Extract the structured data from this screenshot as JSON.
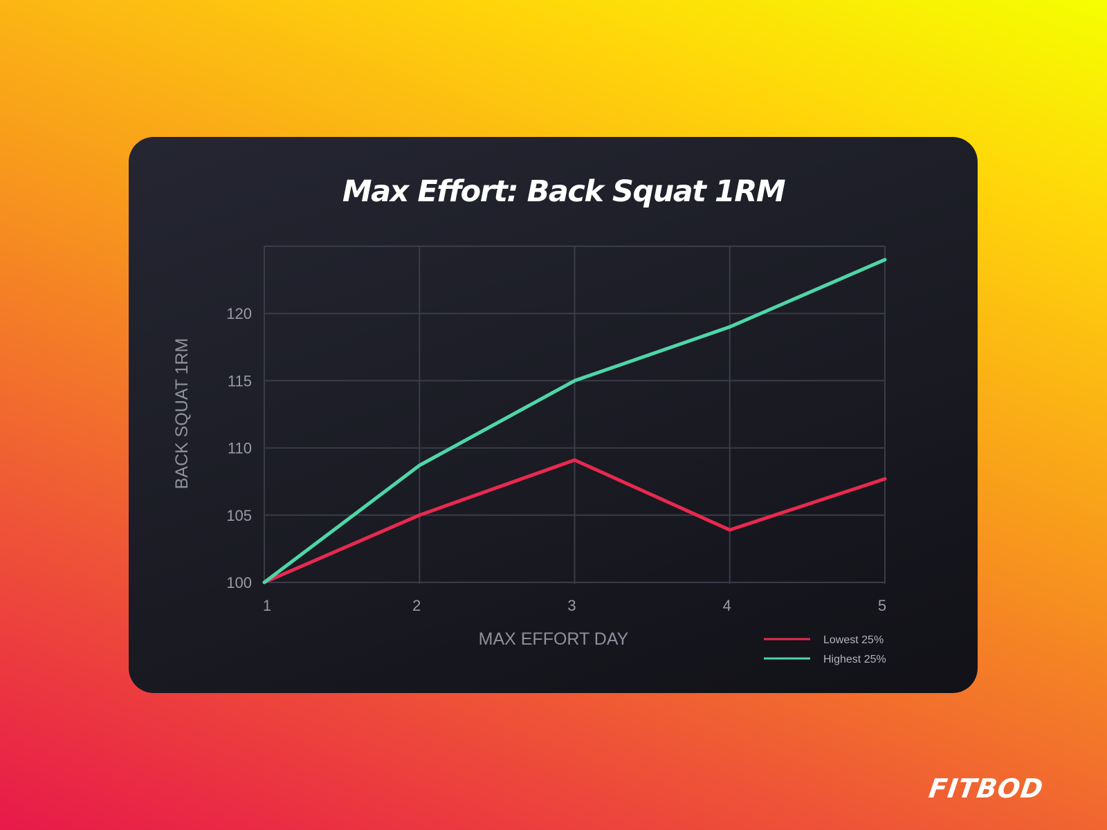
{
  "chart_data": {
    "type": "line",
    "title": "Max Effort: Back Squat 1RM",
    "xlabel": "MAX EFFORT DAY",
    "ylabel": "BACK SQUAT 1RM",
    "x": [
      1,
      2,
      3,
      4,
      5
    ],
    "xticks": [
      "1",
      "2",
      "3",
      "4",
      "5"
    ],
    "yticks": [
      "100",
      "105",
      "110",
      "115",
      "120"
    ],
    "ylim": [
      100,
      125
    ],
    "xlim": [
      1,
      5
    ],
    "grid": true,
    "legend_position": "bottom-right",
    "series": [
      {
        "name": "Lowest 25%",
        "color": "#e8294f",
        "values": [
          100,
          105,
          109.1,
          103.9,
          107.7
        ]
      },
      {
        "name": "Highest 25%",
        "color": "#4fd6a8",
        "values": [
          100,
          108.7,
          115,
          119,
          124
        ]
      }
    ]
  },
  "brand": {
    "logo_text": "FITBOD"
  },
  "colors": {
    "grid": "#3a3c48",
    "axis_text": "#9a9ba6",
    "label_text": "#8e909b",
    "legend_text": "#b3b4bd"
  }
}
